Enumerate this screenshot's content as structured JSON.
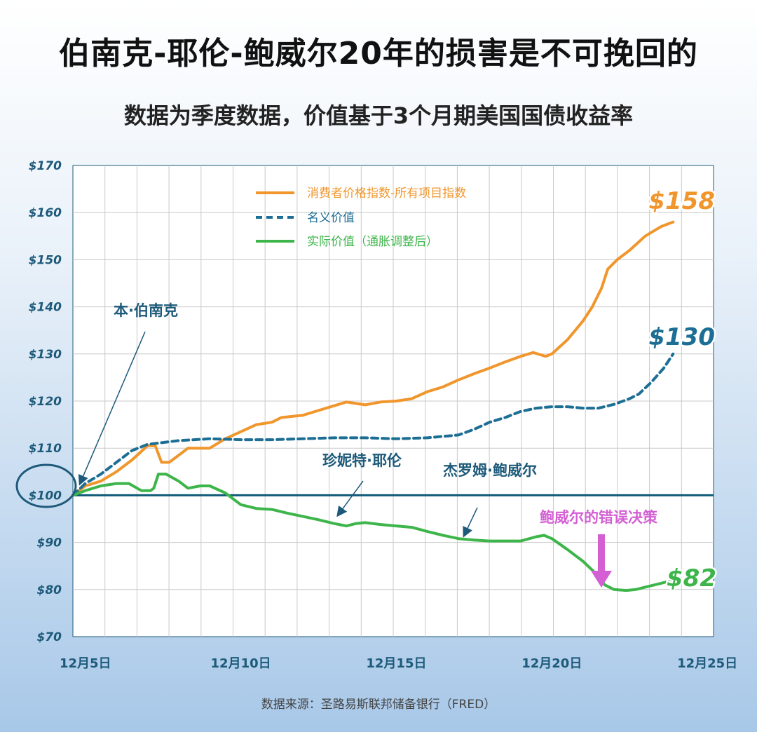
{
  "title": "伯南克-耶伦-鲍威尔20年的损害是不可挽回的",
  "subtitle": "数据为季度数据，价值基于3个月期美国国债收益率",
  "source": "数据来源：圣路易斯联邦储备银行（FRED）",
  "colors": {
    "cpi": "#f0962c",
    "nominal": "#1d6e94",
    "real": "#3db54a",
    "baseline": "#0f5a78",
    "axis_text": "#1d5a7a",
    "powell_mistake": "#d35fd3",
    "grid": "#c9c9c9"
  },
  "chart_data": {
    "type": "line",
    "title": "伯南克-耶伦-鲍威尔20年的损害是不可挽回的",
    "subtitle": "数据为季度数据，价值基于3个月期美国国债收益率",
    "ylim": [
      70,
      170
    ],
    "xlim": [
      4.6,
      25.2
    ],
    "y_ticks": [
      "$70",
      "$80",
      "$90",
      "$100",
      "$110",
      "$120",
      "$130",
      "$140",
      "$150",
      "$160",
      "$170"
    ],
    "x_ticks": [
      {
        "value": 5,
        "label": "12月5日"
      },
      {
        "value": 10,
        "label": "12月10日"
      },
      {
        "value": 15,
        "label": "12月15日"
      },
      {
        "value": 20,
        "label": "12月20日"
      },
      {
        "value": 25,
        "label": "12月25日"
      }
    ],
    "grid": true,
    "legend_position": "top-center",
    "baseline": 100,
    "series": [
      {
        "name": "消费者价格指数-所有项目指数",
        "style": "solid",
        "end_label": "$158",
        "points": [
          [
            4.6,
            100
          ],
          [
            5.0,
            102
          ],
          [
            5.5,
            103
          ],
          [
            6.0,
            105
          ],
          [
            6.5,
            107.5
          ],
          [
            7.0,
            110.5
          ],
          [
            7.25,
            110.5
          ],
          [
            7.45,
            107
          ],
          [
            7.7,
            107
          ],
          [
            8.0,
            108.5
          ],
          [
            8.3,
            110
          ],
          [
            8.7,
            110
          ],
          [
            9.0,
            110
          ],
          [
            9.5,
            112
          ],
          [
            10.0,
            113.5
          ],
          [
            10.5,
            115
          ],
          [
            11.0,
            115.5
          ],
          [
            11.3,
            116.5
          ],
          [
            12.0,
            117
          ],
          [
            12.5,
            118
          ],
          [
            13.0,
            119
          ],
          [
            13.4,
            119.8
          ],
          [
            13.7,
            119.5
          ],
          [
            14.0,
            119.2
          ],
          [
            14.5,
            119.8
          ],
          [
            15.0,
            120
          ],
          [
            15.5,
            120.5
          ],
          [
            16.0,
            122
          ],
          [
            16.5,
            123
          ],
          [
            17.0,
            124.5
          ],
          [
            17.5,
            125.8
          ],
          [
            18.0,
            127
          ],
          [
            18.5,
            128.3
          ],
          [
            19.0,
            129.5
          ],
          [
            19.4,
            130.3
          ],
          [
            19.8,
            129.5
          ],
          [
            20.0,
            130
          ],
          [
            20.5,
            133
          ],
          [
            21.0,
            137
          ],
          [
            21.3,
            140
          ],
          [
            21.6,
            144
          ],
          [
            21.8,
            148
          ],
          [
            22.1,
            150
          ],
          [
            22.5,
            152
          ],
          [
            23.0,
            155
          ],
          [
            23.5,
            157
          ],
          [
            23.9,
            158
          ]
        ]
      },
      {
        "name": "名义价值",
        "style": "dashed",
        "end_label": "$130",
        "points": [
          [
            4.6,
            100
          ],
          [
            5.0,
            102.5
          ],
          [
            5.5,
            104.5
          ],
          [
            6.0,
            107
          ],
          [
            6.5,
            109.5
          ],
          [
            7.0,
            110.8
          ],
          [
            7.5,
            111.2
          ],
          [
            8.0,
            111.6
          ],
          [
            9.0,
            112
          ],
          [
            10.0,
            111.8
          ],
          [
            11.0,
            111.8
          ],
          [
            12.0,
            112
          ],
          [
            13.0,
            112.2
          ],
          [
            14.0,
            112.2
          ],
          [
            15.0,
            112
          ],
          [
            16.0,
            112.2
          ],
          [
            17.0,
            112.8
          ],
          [
            17.5,
            114
          ],
          [
            18.0,
            115.5
          ],
          [
            18.5,
            116.5
          ],
          [
            19.0,
            117.8
          ],
          [
            19.5,
            118.5
          ],
          [
            20.0,
            118.8
          ],
          [
            20.5,
            118.8
          ],
          [
            21.0,
            118.5
          ],
          [
            21.5,
            118.5
          ],
          [
            22.0,
            119.3
          ],
          [
            22.5,
            120.5
          ],
          [
            22.8,
            121.5
          ],
          [
            23.2,
            124
          ],
          [
            23.6,
            127
          ],
          [
            23.9,
            130
          ]
        ]
      },
      {
        "name": "实际价值（通胀调整后）",
        "style": "solid",
        "end_label": "$82",
        "points": [
          [
            4.6,
            100
          ],
          [
            5.0,
            101
          ],
          [
            5.5,
            102
          ],
          [
            6.0,
            102.5
          ],
          [
            6.4,
            102.5
          ],
          [
            6.8,
            101
          ],
          [
            7.1,
            101
          ],
          [
            7.2,
            101.5
          ],
          [
            7.35,
            104.5
          ],
          [
            7.6,
            104.5
          ],
          [
            8.0,
            103
          ],
          [
            8.3,
            101.5
          ],
          [
            8.7,
            102
          ],
          [
            9.0,
            102
          ],
          [
            9.5,
            100.5
          ],
          [
            10.0,
            98
          ],
          [
            10.5,
            97.2
          ],
          [
            11.0,
            97
          ],
          [
            11.5,
            96.2
          ],
          [
            12.0,
            95.5
          ],
          [
            12.5,
            94.8
          ],
          [
            13.0,
            94
          ],
          [
            13.4,
            93.5
          ],
          [
            13.7,
            94
          ],
          [
            14.0,
            94.2
          ],
          [
            14.5,
            93.8
          ],
          [
            15.0,
            93.5
          ],
          [
            15.5,
            93.2
          ],
          [
            16.0,
            92.3
          ],
          [
            16.5,
            91.5
          ],
          [
            17.0,
            90.8
          ],
          [
            17.5,
            90.5
          ],
          [
            18.0,
            90.3
          ],
          [
            18.5,
            90.3
          ],
          [
            19.0,
            90.3
          ],
          [
            19.5,
            91.2
          ],
          [
            19.75,
            91.5
          ],
          [
            20.0,
            90.8
          ],
          [
            20.5,
            88.5
          ],
          [
            21.0,
            86
          ],
          [
            21.4,
            83.5
          ],
          [
            21.7,
            81
          ],
          [
            22.0,
            80
          ],
          [
            22.4,
            79.8
          ],
          [
            22.7,
            80
          ],
          [
            23.0,
            80.5
          ],
          [
            23.5,
            81.3
          ],
          [
            23.9,
            82
          ]
        ]
      }
    ],
    "annotations": [
      {
        "text": "本·伯南克"
      },
      {
        "text": "珍妮特·耶伦"
      },
      {
        "text": "杰罗姆·鲍威尔"
      },
      {
        "text": "鲍威尔的错误决策"
      }
    ]
  }
}
